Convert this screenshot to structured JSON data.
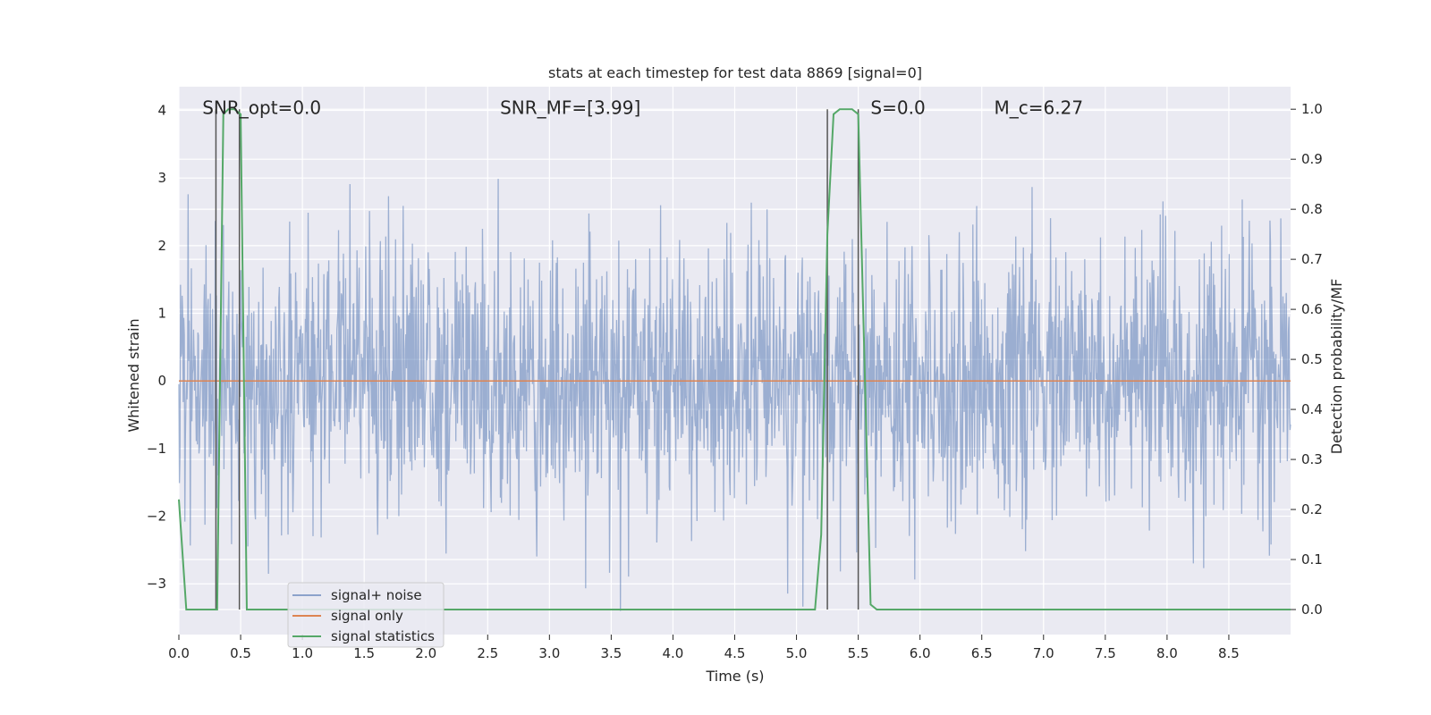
{
  "chart_data": {
    "type": "line",
    "title": "stats at each timestep for test data 8869 [signal=0]",
    "xlabel": "Time (s)",
    "ylabel": "Whitened strain",
    "y2label": "Detection probability/MF",
    "xlim": [
      0.0,
      9.0
    ],
    "ylim": [
      -3.75,
      4.35
    ],
    "y2lim": [
      -0.05,
      1.045
    ],
    "x_ticks": [
      0.0,
      0.5,
      1.0,
      1.5,
      2.0,
      2.5,
      3.0,
      3.5,
      4.0,
      4.5,
      5.0,
      5.5,
      6.0,
      6.5,
      7.0,
      7.5,
      8.0,
      8.5
    ],
    "x_tick_labels": [
      "0.0",
      "0.5",
      "1.0",
      "1.5",
      "2.0",
      "2.5",
      "3.0",
      "3.5",
      "4.0",
      "4.5",
      "5.0",
      "5.5",
      "6.0",
      "6.5",
      "7.0",
      "7.5",
      "8.0",
      "8.5"
    ],
    "y_ticks": [
      -3,
      -2,
      -1,
      0,
      1,
      2,
      3,
      4
    ],
    "y_tick_labels": [
      "−3",
      "−2",
      "−1",
      "0",
      "1",
      "2",
      "3",
      "4"
    ],
    "y2_ticks": [
      0.0,
      0.1,
      0.2,
      0.3,
      0.4,
      0.5,
      0.6,
      0.7,
      0.8,
      0.9,
      1.0
    ],
    "y2_tick_labels": [
      "0.0",
      "0.1",
      "0.2",
      "0.3",
      "0.4",
      "0.5",
      "0.6",
      "0.7",
      "0.8",
      "0.9",
      "1.0"
    ],
    "grid": true,
    "legend_position": "bottom-left",
    "annotations": [
      {
        "text": "SNR_opt=0.0",
        "x": 0.19,
        "y": 4.05
      },
      {
        "text": "SNR_MF=[3.99]",
        "x": 2.6,
        "y": 4.05
      },
      {
        "text": "S=0.0",
        "x": 5.6,
        "y": 4.05
      },
      {
        "text": "M_c=6.27",
        "x": 6.6,
        "y": 4.05
      }
    ],
    "series": [
      {
        "name": "signal+ noise",
        "axis": "left",
        "color": "#4c72b0",
        "description_values": "noise-like whitened strain, roughly between -3.4 and 4.0 across full range",
        "noise": {
          "x_start": 0.0,
          "x_end": 9.0,
          "samples": 2048,
          "typical_amplitude": 1.0,
          "max": 4.0,
          "min": -3.4
        }
      },
      {
        "name": "signal only",
        "axis": "left",
        "color": "#dd8452",
        "x": [
          0.0,
          9.0
        ],
        "y": [
          0.0,
          0.0
        ]
      },
      {
        "name": "signal statistics",
        "axis": "right",
        "color": "#55a868",
        "x": [
          0.0,
          0.06,
          0.1,
          0.2,
          0.3,
          0.31,
          0.36,
          0.4,
          0.45,
          0.5,
          0.55,
          0.6,
          1.0,
          2.0,
          3.0,
          4.0,
          5.0,
          5.15,
          5.2,
          5.25,
          5.3,
          5.35,
          5.4,
          5.45,
          5.5,
          5.55,
          5.6,
          5.65,
          6.0,
          7.0,
          8.0,
          9.0
        ],
        "y": [
          0.22,
          0.0,
          0.0,
          0.0,
          0.0,
          0.0,
          0.99,
          1.0,
          1.0,
          0.99,
          0.0,
          0.0,
          0.0,
          0.0,
          0.0,
          0.0,
          0.0,
          0.0,
          0.15,
          0.75,
          0.99,
          1.0,
          1.0,
          1.0,
          0.99,
          0.5,
          0.01,
          0.0,
          0.0,
          0.0,
          0.0,
          0.0
        ]
      }
    ],
    "vlines": [
      {
        "x": 0.3,
        "y2_range": [
          0.0,
          1.0
        ]
      },
      {
        "x": 0.49,
        "y2_range": [
          0.0,
          1.0
        ]
      },
      {
        "x": 5.25,
        "y2_range": [
          0.0,
          1.0
        ]
      },
      {
        "x": 5.5,
        "y2_range": [
          0.0,
          1.0
        ]
      }
    ],
    "colors": {
      "background": "#eaeaf2",
      "grid": "#ffffff",
      "text": "#262626",
      "vline": "#555555"
    }
  }
}
